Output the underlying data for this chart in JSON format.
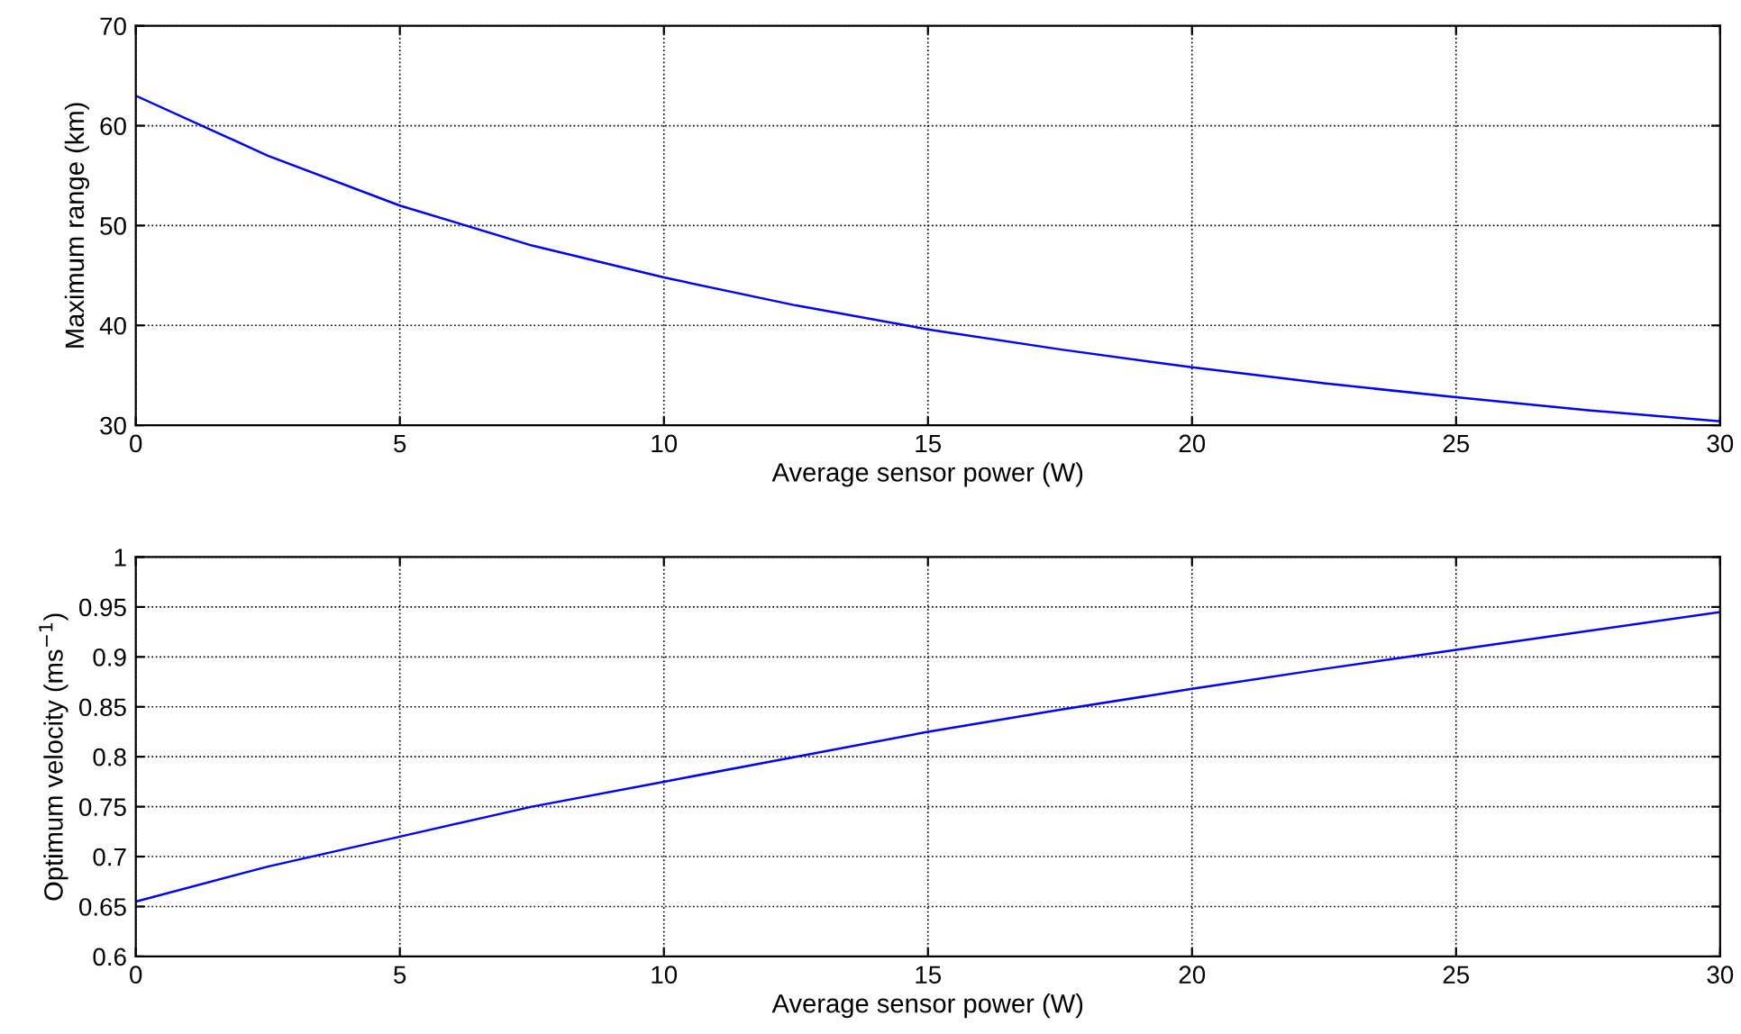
{
  "chart_data": [
    {
      "type": "line",
      "xlabel": "Average sensor power (W)",
      "ylabel": "Maximum range (km)",
      "x": [
        0,
        2.5,
        5,
        7.5,
        10,
        12.5,
        15,
        17.5,
        20,
        22.5,
        25,
        27.5,
        30
      ],
      "series": [
        {
          "color": "#0000ff",
          "values": [
            63,
            57,
            52,
            48,
            44.8,
            42,
            39.6,
            37.6,
            35.8,
            34.2,
            32.8,
            31.5,
            30.4
          ]
        }
      ],
      "xlim": [
        0,
        30
      ],
      "xticks": [
        0,
        5,
        10,
        15,
        20,
        25,
        30
      ],
      "ylim": [
        30,
        70
      ],
      "yticks": [
        30,
        40,
        50,
        60,
        70
      ],
      "grid": true
    },
    {
      "type": "line",
      "xlabel": "Average sensor power (W)",
      "ylabel": "Optimum velocity (ms$^{−1}$)",
      "x": [
        0,
        2.5,
        5,
        7.5,
        10,
        12.5,
        15,
        17.5,
        20,
        22.5,
        25,
        27.5,
        30
      ],
      "series": [
        {
          "color": "#0000ff",
          "values": [
            0.655,
            0.69,
            0.72,
            0.75,
            0.775,
            0.8,
            0.825,
            0.847,
            0.868,
            0.888,
            0.907,
            0.926,
            0.945
          ]
        }
      ],
      "xlim": [
        0,
        30
      ],
      "xticks": [
        0,
        5,
        10,
        15,
        20,
        25,
        30
      ],
      "ylim": [
        0.6,
        1
      ],
      "yticks": [
        0.6,
        0.65,
        0.7,
        0.75,
        0.8,
        0.85,
        0.9,
        0.95,
        1
      ],
      "grid": true
    }
  ]
}
